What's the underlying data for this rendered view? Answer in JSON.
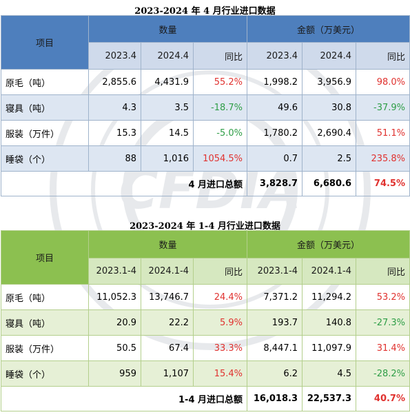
{
  "table1": {
    "title": "2023-2024 年 4 月行业进口数据",
    "item_header": "项目",
    "group_qty": "数量",
    "group_amt": "金额（万美元）",
    "sub_headers": [
      "2023.4",
      "2024.4",
      "同比",
      "2023.4",
      "2024.4",
      "同比"
    ],
    "rows": [
      {
        "label": "原毛（吨）",
        "cells": [
          "2,855.6",
          "4,431.9",
          "55.2%",
          "1,998.2",
          "3,956.9",
          "98.0%"
        ],
        "colors": [
          "",
          "",
          "red",
          "",
          "",
          "red"
        ]
      },
      {
        "label": "寝具（吨）",
        "cells": [
          "4.3",
          "3.5",
          "-18.7%",
          "49.6",
          "30.8",
          "-37.9%"
        ],
        "colors": [
          "",
          "",
          "green",
          "",
          "",
          "green"
        ]
      },
      {
        "label": "服装（万件）",
        "cells": [
          "15.3",
          "14.5",
          "-5.0%",
          "1,780.2",
          "2,690.4",
          "51.1%"
        ],
        "colors": [
          "",
          "",
          "green",
          "",
          "",
          "red"
        ]
      },
      {
        "label": "睡袋（个）",
        "cells": [
          "88",
          "1,016",
          "1054.5%",
          "0.7",
          "2.5",
          "235.8%"
        ],
        "colors": [
          "",
          "",
          "red",
          "",
          "",
          "red"
        ]
      }
    ],
    "total": {
      "label": "4 月进口总额",
      "v1": "3,828.7",
      "v2": "6,680.6",
      "yoy": "74.5%"
    }
  },
  "table2": {
    "title": "2023-2024 年 1-4 月行业进口数据",
    "item_header": "项目",
    "group_qty": "数量",
    "group_amt": "金额（万美元）",
    "sub_headers": [
      "2023.1-4",
      "2024.1-4",
      "同比",
      "2023.1-4",
      "2024.1-4",
      "同比"
    ],
    "rows": [
      {
        "label": "原毛（吨）",
        "cells": [
          "11,052.3",
          "13,746.7",
          "24.4%",
          "7,371.2",
          "11,294.2",
          "53.2%"
        ],
        "colors": [
          "",
          "",
          "red",
          "",
          "",
          "red"
        ]
      },
      {
        "label": "寝具（吨）",
        "cells": [
          "20.9",
          "22.2",
          "5.9%",
          "193.7",
          "140.8",
          "-27.3%"
        ],
        "colors": [
          "",
          "",
          "red",
          "",
          "",
          "green"
        ]
      },
      {
        "label": "服装（万件）",
        "cells": [
          "50.5",
          "67.4",
          "33.3%",
          "8,447.1",
          "11,097.9",
          "31.4%"
        ],
        "colors": [
          "",
          "",
          "red",
          "",
          "",
          "red"
        ]
      },
      {
        "label": "睡袋（个）",
        "cells": [
          "959",
          "1,107",
          "15.4%",
          "6.2",
          "4.5",
          "-28.2%"
        ],
        "colors": [
          "",
          "",
          "red",
          "",
          "",
          "green"
        ]
      }
    ],
    "total": {
      "label": "1-4 月进口总额",
      "v1": "16,018.3",
      "v2": "22,537.3",
      "yoy": "40.7%"
    }
  },
  "watermark": {
    "text": "CFDIA",
    "icon": "association-seal-watermark"
  }
}
